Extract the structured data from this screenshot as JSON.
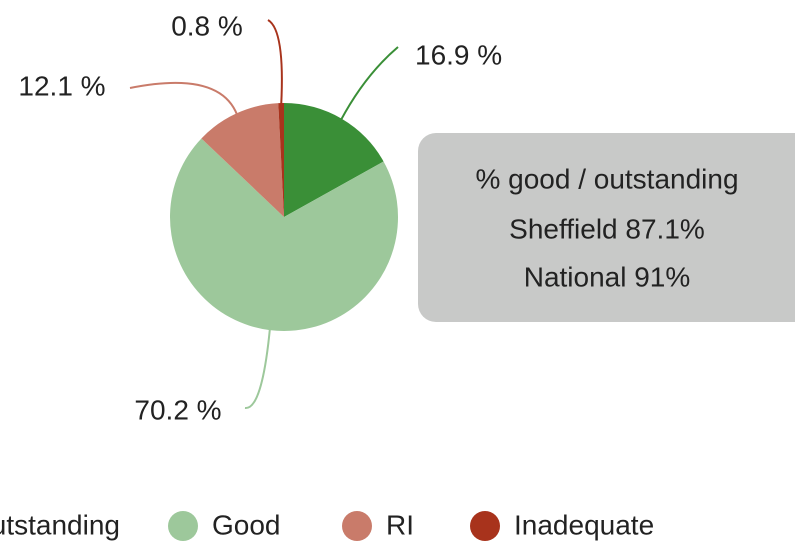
{
  "chart_data": {
    "type": "pie",
    "categories": [
      "Outstanding",
      "Good",
      "RI",
      "Inadequate"
    ],
    "values": [
      16.9,
      70.2,
      12.1,
      0.8
    ],
    "value_labels": [
      "16.9 %",
      "70.2 %",
      "12.1 %",
      "0.8 %"
    ],
    "colors": [
      "#3a8f37",
      "#9dc89b",
      "#c97b6a",
      "#a8331c"
    ],
    "annotation": [
      "% good / outstanding",
      "Sheffield 87.1%",
      "National 91%"
    ],
    "legend": "bottom"
  }
}
